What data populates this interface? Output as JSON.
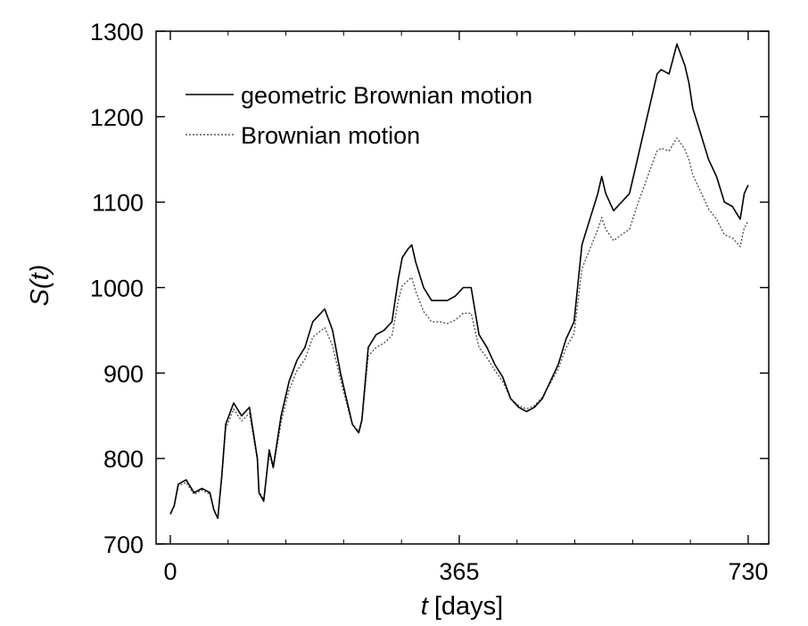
{
  "chart_data": {
    "type": "line",
    "xlabel_var": "t",
    "xlabel_unit": "[days]",
    "ylabel": "S(t)",
    "xlim": [
      -18,
      756
    ],
    "ylim": [
      700,
      1300
    ],
    "xticks": [
      0,
      365,
      730
    ],
    "yticks": [
      700,
      800,
      900,
      1000,
      1100,
      1200,
      1300
    ],
    "grid": false,
    "legend_position": "top-left",
    "colors": {
      "line": "#000000",
      "dotted": "#555555"
    },
    "series": [
      {
        "name": "geometric Brownian motion",
        "style": "solid",
        "x": [
          0,
          5,
          10,
          20,
          30,
          40,
          50,
          55,
          60,
          65,
          70,
          80,
          90,
          100,
          110,
          112,
          118,
          125,
          130,
          140,
          150,
          160,
          170,
          180,
          195,
          205,
          215,
          220,
          230,
          238,
          242,
          250,
          260,
          270,
          280,
          288,
          293,
          300,
          305,
          310,
          320,
          330,
          340,
          350,
          360,
          370,
          380,
          390,
          400,
          410,
          420,
          430,
          440,
          450,
          460,
          470,
          480,
          490,
          500,
          510,
          520,
          530,
          540,
          545,
          550,
          560,
          570,
          580,
          590,
          600,
          610,
          615,
          620,
          630,
          640,
          650,
          655,
          660,
          670,
          680,
          690,
          700,
          710,
          720,
          725,
          730
        ],
        "y": [
          735,
          745,
          770,
          775,
          760,
          765,
          760,
          740,
          730,
          780,
          840,
          865,
          850,
          860,
          800,
          760,
          750,
          810,
          790,
          850,
          890,
          915,
          930,
          960,
          975,
          950,
          900,
          880,
          840,
          830,
          845,
          930,
          945,
          950,
          960,
          1010,
          1035,
          1045,
          1050,
          1030,
          1000,
          985,
          985,
          985,
          990,
          1000,
          1000,
          945,
          930,
          910,
          895,
          870,
          860,
          855,
          860,
          870,
          890,
          910,
          940,
          960,
          1050,
          1080,
          1110,
          1130,
          1110,
          1090,
          1100,
          1110,
          1150,
          1190,
          1230,
          1250,
          1255,
          1250,
          1285,
          1260,
          1240,
          1210,
          1180,
          1150,
          1130,
          1100,
          1095,
          1080,
          1110,
          1120
        ]
      },
      {
        "name": "Brownian motion",
        "style": "dotted",
        "x": [
          0,
          5,
          10,
          20,
          30,
          40,
          50,
          55,
          60,
          65,
          70,
          80,
          90,
          100,
          110,
          112,
          118,
          125,
          130,
          140,
          150,
          160,
          170,
          180,
          195,
          205,
          215,
          220,
          230,
          238,
          242,
          250,
          260,
          270,
          280,
          288,
          293,
          300,
          305,
          310,
          320,
          330,
          340,
          350,
          360,
          370,
          380,
          390,
          400,
          410,
          420,
          430,
          440,
          450,
          460,
          470,
          480,
          490,
          500,
          510,
          520,
          530,
          540,
          545,
          550,
          560,
          570,
          580,
          590,
          600,
          610,
          615,
          620,
          630,
          640,
          650,
          655,
          660,
          670,
          680,
          690,
          700,
          710,
          720,
          725,
          730
        ],
        "y": [
          735,
          745,
          768,
          772,
          758,
          763,
          758,
          740,
          730,
          778,
          835,
          858,
          844,
          853,
          798,
          762,
          752,
          805,
          788,
          843,
          880,
          903,
          916,
          942,
          953,
          932,
          892,
          874,
          840,
          832,
          846,
          920,
          930,
          935,
          944,
          985,
          1002,
          1008,
          1012,
          996,
          972,
          960,
          960,
          958,
          962,
          970,
          970,
          930,
          918,
          903,
          890,
          870,
          862,
          858,
          862,
          872,
          888,
          905,
          930,
          946,
          1022,
          1045,
          1068,
          1082,
          1068,
          1055,
          1062,
          1068,
          1097,
          1122,
          1148,
          1160,
          1163,
          1160,
          1175,
          1162,
          1150,
          1132,
          1112,
          1092,
          1080,
          1062,
          1058,
          1048,
          1070,
          1078
        ]
      }
    ]
  }
}
